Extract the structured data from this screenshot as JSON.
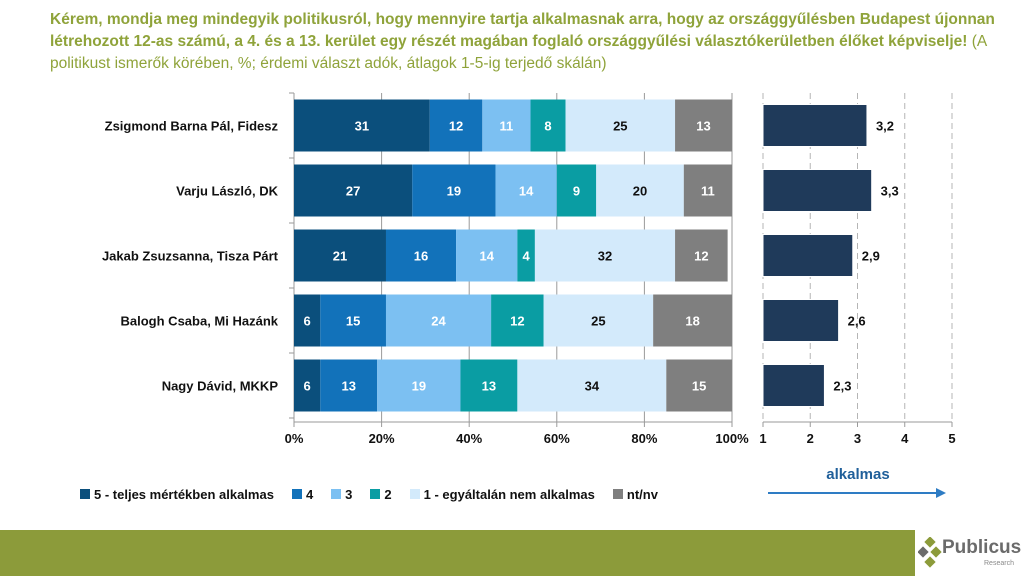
{
  "title": {
    "bold": "Kérem, mondja meg mindegyik politikusról, hogy mennyire tartja alkalmasnak arra, hogy az országgyűlésben Budapest újonnan létrehozott 12-as számú, a 4. és a 13. kerület egy részét magában foglaló országgyűlési választókerületben élőket képviselje!",
    "normal": " (A politikust ismerők körében, %; érdemi választ adók, átlagok 1-5-ig terjedő skálán)"
  },
  "colors": {
    "title": "#8FA33A",
    "s5": "#0B4F7C",
    "s4": "#1272BA",
    "s3": "#7CC0F2",
    "s2": "#0A9DA3",
    "s1": "#D3EAFB",
    "ntnv": "#7F7F7F",
    "avg": "#1F3A5A",
    "arrow": "#2E7CC4",
    "footer": "#8C9B3A"
  },
  "chart_data": [
    {
      "type": "bar",
      "stacked": true,
      "orientation": "horizontal",
      "categories": [
        "Zsigmond Barna Pál, Fidesz",
        "Varju László, DK",
        "Jakab Zsuzsanna, Tisza Párt",
        "Balogh Csaba, Mi Hazánk",
        "Nagy Dávid, MKKP"
      ],
      "series": [
        {
          "name": "5 - teljes mértékben alkalmas",
          "color_key": "s5",
          "label_color": "#ffffff",
          "values": [
            31,
            27,
            21,
            6,
            6
          ]
        },
        {
          "name": "4",
          "color_key": "s4",
          "label_color": "#ffffff",
          "values": [
            12,
            19,
            16,
            15,
            13
          ]
        },
        {
          "name": "3",
          "color_key": "s3",
          "label_color": "#ffffff",
          "values": [
            11,
            14,
            14,
            24,
            19
          ]
        },
        {
          "name": "2",
          "color_key": "s2",
          "label_color": "#ffffff",
          "values": [
            8,
            9,
            4,
            12,
            13
          ]
        },
        {
          "name": "1 - egyáltalán nem alkalmas",
          "color_key": "s1",
          "label_color": "#111111",
          "values": [
            25,
            20,
            32,
            25,
            34
          ]
        },
        {
          "name": "nt/nv",
          "color_key": "ntnv",
          "label_color": "#ffffff",
          "values": [
            13,
            11,
            12,
            18,
            15
          ]
        }
      ],
      "xlim": [
        0,
        100
      ],
      "xticks": [
        "0%",
        "20%",
        "40%",
        "60%",
        "80%",
        "100%"
      ],
      "legend": "bottom"
    },
    {
      "type": "bar",
      "orientation": "horizontal",
      "categories": [
        "Zsigmond Barna Pál, Fidesz",
        "Varju László, DK",
        "Jakab Zsuzsanna, Tisza Párt",
        "Balogh Csaba, Mi Hazánk",
        "Nagy Dávid, MKKP"
      ],
      "values": [
        3.2,
        3.3,
        2.9,
        2.6,
        2.3
      ],
      "labels": [
        "3,2",
        "3,3",
        "2,9",
        "2,6",
        "2,3"
      ],
      "xlim": [
        1,
        5
      ],
      "xticks": [
        "1",
        "2",
        "3",
        "4",
        "5"
      ],
      "grid": "dashed-vertical",
      "annotation": "alkalmas"
    }
  ],
  "logo": {
    "name": "Publicus",
    "sub": "Research"
  }
}
